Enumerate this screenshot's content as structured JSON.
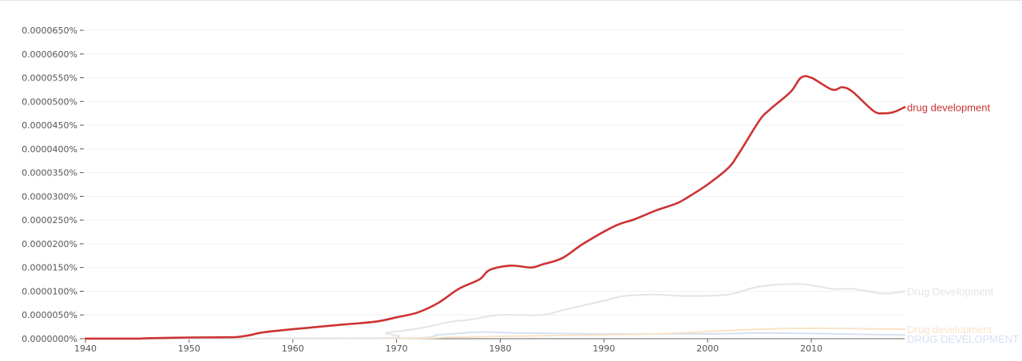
{
  "chart_data": {
    "type": "line",
    "title": "",
    "xlabel": "",
    "ylabel": "",
    "xlim": [
      1940,
      2019
    ],
    "ylim": [
      0,
      6.5e-06
    ],
    "grid": true,
    "legend": "inline-right",
    "y_ticks": [
      {
        "value": 6.5e-06,
        "label": "0.0000650%"
      },
      {
        "value": 6e-06,
        "label": "0.0000600%"
      },
      {
        "value": 5.5e-06,
        "label": "0.0000550%"
      },
      {
        "value": 5e-06,
        "label": "0.0000500%"
      },
      {
        "value": 4.5e-06,
        "label": "0.0000450%"
      },
      {
        "value": 4e-06,
        "label": "0.0000400%"
      },
      {
        "value": 3.5e-06,
        "label": "0.0000350%"
      },
      {
        "value": 3e-06,
        "label": "0.0000300%"
      },
      {
        "value": 2.5e-06,
        "label": "0.0000250%"
      },
      {
        "value": 2e-06,
        "label": "0.0000200%"
      },
      {
        "value": 1.5e-06,
        "label": "0.0000150%"
      },
      {
        "value": 1e-06,
        "label": "0.0000100%"
      },
      {
        "value": 5e-07,
        "label": "0.0000050%"
      },
      {
        "value": 0.0,
        "label": "0.0000000%"
      }
    ],
    "x_ticks": [
      {
        "value": 1940,
        "label": "1940"
      },
      {
        "value": 1950,
        "label": "1950"
      },
      {
        "value": 1960,
        "label": "1960"
      },
      {
        "value": 1970,
        "label": "1970"
      },
      {
        "value": 1980,
        "label": "1980"
      },
      {
        "value": 1990,
        "label": "1990"
      },
      {
        "value": 2000,
        "label": "2000"
      },
      {
        "value": 2010,
        "label": "2010"
      }
    ],
    "series": [
      {
        "name": "drug development",
        "color": "#cc3333",
        "width": 2.6,
        "points": [
          [
            1940,
            2e-09
          ],
          [
            1945,
            2e-09
          ],
          [
            1946,
            1e-08
          ],
          [
            1950,
            2.5e-08
          ],
          [
            1954,
            3e-08
          ],
          [
            1955,
            4.5e-08
          ],
          [
            1956,
            8e-08
          ],
          [
            1957,
            1.3e-07
          ],
          [
            1960,
            2e-07
          ],
          [
            1965,
            3e-07
          ],
          [
            1968,
            3.6e-07
          ],
          [
            1970,
            4.5e-07
          ],
          [
            1972,
            5.5e-07
          ],
          [
            1974,
            7.5e-07
          ],
          [
            1976,
            1.05e-06
          ],
          [
            1978,
            1.25e-06
          ],
          [
            1979,
            1.45e-06
          ],
          [
            1981,
            1.54e-06
          ],
          [
            1983,
            1.5e-06
          ],
          [
            1984,
            1.56e-06
          ],
          [
            1986,
            1.7e-06
          ],
          [
            1988,
            2e-06
          ],
          [
            1991,
            2.37e-06
          ],
          [
            1993,
            2.52e-06
          ],
          [
            1995,
            2.7e-06
          ],
          [
            1997,
            2.85e-06
          ],
          [
            1998,
            2.97e-06
          ],
          [
            2000,
            3.25e-06
          ],
          [
            2002,
            3.6e-06
          ],
          [
            2003,
            3.9e-06
          ],
          [
            2005,
            4.6e-06
          ],
          [
            2006,
            4.83e-06
          ],
          [
            2008,
            5.2e-06
          ],
          [
            2009,
            5.5e-06
          ],
          [
            2010,
            5.5e-06
          ],
          [
            2012,
            5.25e-06
          ],
          [
            2013,
            5.3e-06
          ],
          [
            2014,
            5.2e-06
          ],
          [
            2016,
            4.8e-06
          ],
          [
            2017,
            4.75e-06
          ],
          [
            2018,
            4.78e-06
          ],
          [
            2019,
            4.88e-06
          ]
        ]
      },
      {
        "name": "Drug Development",
        "color": "#e4e4e8",
        "width": 2,
        "points": [
          [
            1940,
            0.0
          ],
          [
            1968,
            1e-08
          ],
          [
            1969,
            1.2e-07
          ],
          [
            1971,
            1.8e-07
          ],
          [
            1973,
            2.5e-07
          ],
          [
            1975,
            3.5e-07
          ],
          [
            1977,
            4e-07
          ],
          [
            1980,
            5e-07
          ],
          [
            1984,
            5e-07
          ],
          [
            1986,
            6e-07
          ],
          [
            1988,
            7e-07
          ],
          [
            1990,
            8e-07
          ],
          [
            1992,
            9e-07
          ],
          [
            1995,
            9.3e-07
          ],
          [
            1998,
            9e-07
          ],
          [
            2002,
            9.3e-07
          ],
          [
            2005,
            1.1e-06
          ],
          [
            2009,
            1.15e-06
          ],
          [
            2012,
            1.05e-06
          ],
          [
            2014,
            1.05e-06
          ],
          [
            2017,
            9.5e-07
          ],
          [
            2019,
            1e-06
          ]
        ]
      },
      {
        "name": "Drug development",
        "color": "#fbe3c8",
        "width": 2,
        "points": [
          [
            1940,
            0.0
          ],
          [
            1970,
            1e-08
          ],
          [
            1975,
            3e-08
          ],
          [
            1980,
            5e-08
          ],
          [
            1990,
            8e-08
          ],
          [
            1995,
            1e-07
          ],
          [
            2000,
            1.5e-07
          ],
          [
            2005,
            2e-07
          ],
          [
            2010,
            2.2e-07
          ],
          [
            2015,
            2.1e-07
          ],
          [
            2019,
            2e-07
          ]
        ]
      },
      {
        "name": "DRUG DEVELOPMENT",
        "color": "#d6e1f2",
        "width": 2,
        "points": [
          [
            1940,
            0.0
          ],
          [
            1970,
            1e-08
          ],
          [
            1974,
            8e-08
          ],
          [
            1978,
            1.4e-07
          ],
          [
            1982,
            1.2e-07
          ],
          [
            1990,
            1e-07
          ],
          [
            2000,
            1e-07
          ],
          [
            2005,
            1.2e-07
          ],
          [
            2010,
            1.1e-07
          ],
          [
            2015,
            9e-08
          ],
          [
            2019,
            8e-08
          ]
        ]
      }
    ]
  }
}
